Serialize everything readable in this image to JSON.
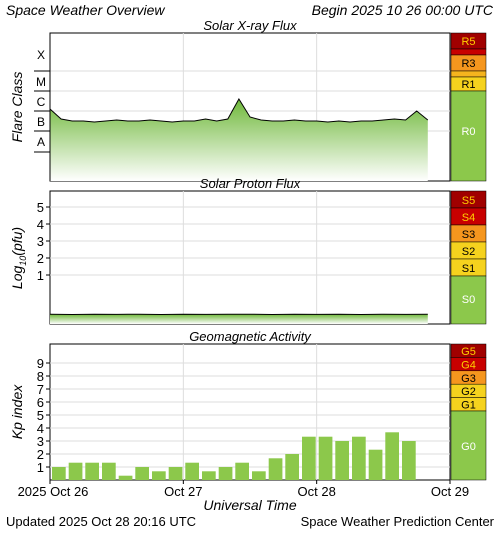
{
  "header": {
    "title": "Space Weather Overview",
    "begin": "Begin 2025 10 26 00:00 UTC"
  },
  "footer": {
    "updated": "Updated 2025 Oct 28 20:16 UTC",
    "center": "Space Weather Prediction Center"
  },
  "colors": {
    "green": "#8cc84b",
    "yellow": "#f5d21e",
    "orange": "#f5961e",
    "red_orange": "#e63c14",
    "red": "#c80000",
    "dark_red": "#a00000",
    "gradient_top": "#6fb83a",
    "gradient_bottom": "#ffffff"
  },
  "chart_data": [
    {
      "type": "area",
      "title": "Solar X-ray Flux",
      "ylabel": "Flare Class",
      "y_categories": [
        "A",
        "B",
        "C",
        "M",
        "X"
      ],
      "scale_labels": [
        "R5",
        "R3",
        "R1",
        "R0"
      ],
      "x": [
        0,
        2,
        4,
        6,
        8,
        10,
        12,
        14,
        16,
        18,
        20,
        22,
        24,
        26,
        28,
        30,
        32,
        34,
        36,
        38,
        40,
        42,
        44,
        46,
        48,
        50,
        52,
        54,
        56,
        58,
        60,
        62,
        64,
        66,
        68
      ],
      "values": [
        2.1,
        1.6,
        1.5,
        1.5,
        1.45,
        1.5,
        1.55,
        1.5,
        1.5,
        1.55,
        1.5,
        1.45,
        1.5,
        1.5,
        1.6,
        1.5,
        1.6,
        2.6,
        1.7,
        1.55,
        1.5,
        1.5,
        1.55,
        1.5,
        1.5,
        1.45,
        1.5,
        1.45,
        1.5,
        1.5,
        1.55,
        1.6,
        1.55,
        2.0,
        1.55
      ],
      "x_unit": "hours since 2025 Oct 26 00:00 UTC",
      "y_unit": "flux in multiples of the class (B = 1e-7 W/m2)"
    },
    {
      "type": "area",
      "title": "Solar Proton Flux",
      "ylabel": "Log10(pfu)",
      "yticks": [
        1,
        2,
        3,
        4,
        5
      ],
      "scale_labels": [
        "S5",
        "S4",
        "S3",
        "S2",
        "S1",
        "S0"
      ],
      "x": [
        0,
        4,
        8,
        12,
        16,
        20,
        24,
        28,
        32,
        36,
        40,
        44,
        48,
        52,
        56,
        60,
        64,
        68
      ],
      "values": [
        -0.6,
        -0.62,
        -0.6,
        -0.61,
        -0.6,
        -0.62,
        -0.6,
        -0.61,
        -0.6,
        -0.6,
        -0.62,
        -0.6,
        -0.61,
        -0.6,
        -0.62,
        -0.6,
        -0.61,
        -0.6
      ]
    },
    {
      "type": "bar",
      "title": "Geomagnetic Activity",
      "ylabel": "Kp index",
      "yticks": [
        1,
        2,
        3,
        4,
        5,
        6,
        7,
        8,
        9
      ],
      "ylim": [
        0,
        9
      ],
      "scale_labels": [
        "G5",
        "G4",
        "G3",
        "G2",
        "G1",
        "G0"
      ],
      "values": [
        1.0,
        1.33,
        1.33,
        1.33,
        0.33,
        1.0,
        0.67,
        1.0,
        1.33,
        0.67,
        1.0,
        1.33,
        0.67,
        1.67,
        2.0,
        3.33,
        3.33,
        3.0,
        3.33,
        2.33,
        3.67,
        3.0
      ],
      "xlabel": "Universal Time",
      "xticks": [
        "2025 Oct 26",
        "Oct 27",
        "Oct 28",
        "Oct 29"
      ]
    }
  ]
}
